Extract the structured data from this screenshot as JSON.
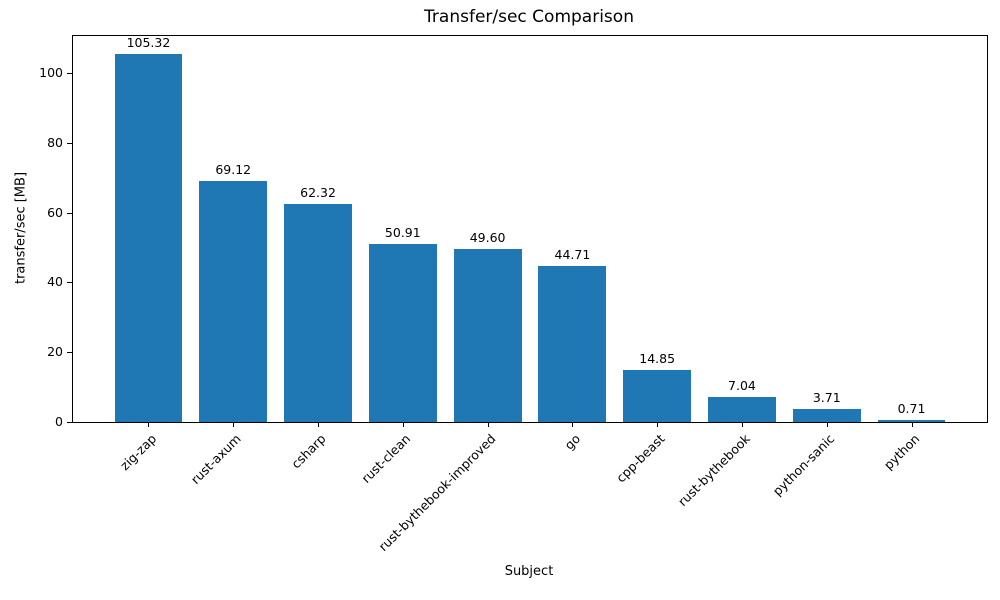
{
  "chart_data": {
    "type": "bar",
    "title": "Transfer/sec Comparison",
    "xlabel": "Subject",
    "ylabel": "transfer/sec [MB]",
    "categories": [
      "zig-zap",
      "rust-axum",
      "csharp",
      "rust-clean",
      "rust-bythebook-improved",
      "go",
      "cpp-beast",
      "rust-bythebook",
      "python-sanic",
      "python"
    ],
    "values": [
      105.32,
      69.12,
      62.32,
      50.91,
      49.6,
      44.71,
      14.85,
      7.04,
      3.71,
      0.71
    ],
    "value_labels": [
      "105.32",
      "69.12",
      "62.32",
      "50.91",
      "49.60",
      "44.71",
      "14.85",
      "7.04",
      "3.71",
      "0.71"
    ],
    "yticks": [
      0,
      20,
      40,
      60,
      80,
      100
    ],
    "ylim": [
      0,
      110.6
    ],
    "bar_color": "#1f77b4",
    "bar_width": 0.8,
    "grid": false,
    "legend_position": "none",
    "xtick_rotation": 45
  }
}
